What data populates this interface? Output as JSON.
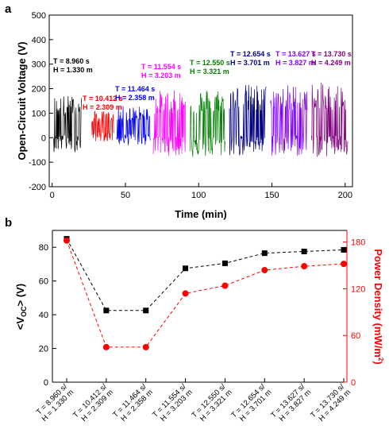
{
  "panels": {
    "a": "a",
    "b": "b"
  },
  "chart_data": [
    {
      "panel": "a",
      "type": "line",
      "xlabel": "Time (min)",
      "ylabel": "Open-Circuit Voltage (V)",
      "xlim": [
        -2,
        205
      ],
      "ylim": [
        -200,
        500
      ],
      "x_ticks": [
        "0",
        "50",
        "100",
        "150",
        "200"
      ],
      "y_ticks": [
        "-200",
        "-100",
        "0",
        "100",
        "200",
        "300",
        "400",
        "500"
      ],
      "grid": false,
      "segments": [
        {
          "color": "#000000",
          "x": [
            1,
            20
          ],
          "center": 45,
          "amplitude": 130,
          "annotation": {
            "line1": "T = 8.960 s",
            "line2": "H = 1.330 m"
          }
        },
        {
          "color": "#ff0000",
          "x": [
            27,
            42
          ],
          "center": 40,
          "amplitude": 70,
          "annotation": {
            "line1": "T = 10.412 s",
            "line2": "H = 2.309 m"
          }
        },
        {
          "color": "#0000ff",
          "x": [
            44,
            67
          ],
          "center": 40,
          "amplitude": 90,
          "annotation": {
            "line1": "T = 11.464 s",
            "line2": "H = 2.358 m"
          }
        },
        {
          "color": "#ff00ff",
          "x": [
            69,
            91
          ],
          "center": 45,
          "amplitude": 150,
          "annotation": {
            "line1": "T = 11.554 s",
            "line2": "H = 3.203 m"
          }
        },
        {
          "color": "#008000",
          "x": [
            94,
            118
          ],
          "center": 45,
          "amplitude": 160,
          "annotation": {
            "line1": "T = 12.550 s",
            "line2": "H = 3.321 m"
          }
        },
        {
          "color": "#000080",
          "x": [
            121,
            146
          ],
          "center": 55,
          "amplitude": 165,
          "annotation": {
            "line1": "T = 12.654 s",
            "line2": "H = 3.701 m"
          }
        },
        {
          "color": "#8000ff",
          "x": [
            149,
            174
          ],
          "center": 55,
          "amplitude": 165,
          "annotation": {
            "line1": "T = 13.627 s",
            "line2": "H = 3.827 m"
          }
        },
        {
          "color": "#800080",
          "x": [
            177,
            202
          ],
          "center": 55,
          "amplitude": 170,
          "annotation": {
            "line1": "T = 13.730 s",
            "line2": "H = 4.249 m"
          }
        }
      ]
    },
    {
      "panel": "b",
      "type": "line",
      "xlabel": "",
      "categories": [
        {
          "line1": "T = 8.960 s/",
          "line2": "H = 1.330 m"
        },
        {
          "line1": "T = 10.412 s/",
          "line2": "H = 2.309 m"
        },
        {
          "line1": "T = 11.464 s/",
          "line2": "H = 2.358 m"
        },
        {
          "line1": "T = 11.554 s/",
          "line2": "H = 3.203 m"
        },
        {
          "line1": "T = 12.550 s/",
          "line2": "H = 3.321 m"
        },
        {
          "line1": "T = 12.654 s/",
          "line2": "H = 3.701 m"
        },
        {
          "line1": "T = 13.627 s/",
          "line2": "H = 3.827 m"
        },
        {
          "line1": "T = 13.730 s/",
          "line2": "H = 4.249 m"
        }
      ],
      "left_axis": {
        "label_main": "<V",
        "label_sub": "OC",
        "label_tail": "> (V)",
        "ylim": [
          0,
          90
        ],
        "ticks": [
          "0",
          "20",
          "40",
          "60",
          "80"
        ],
        "color": "#000000"
      },
      "right_axis": {
        "label_main": "Power Density (mW/m",
        "label_sup": "2",
        "label_tail": ")",
        "ylim": [
          0,
          195
        ],
        "ticks": [
          "0",
          "60",
          "120",
          "180"
        ],
        "color": "#ff0000"
      },
      "series": [
        {
          "axis": "left",
          "color": "#000000",
          "marker": "square",
          "values": [
            85,
            42.5,
            42.5,
            67.5,
            70.5,
            76.5,
            77.5,
            78.5
          ]
        },
        {
          "axis": "right",
          "color": "#ff0000",
          "marker": "circle",
          "values": [
            182,
            45,
            45,
            114,
            124,
            144,
            149,
            152
          ]
        }
      ]
    }
  ]
}
